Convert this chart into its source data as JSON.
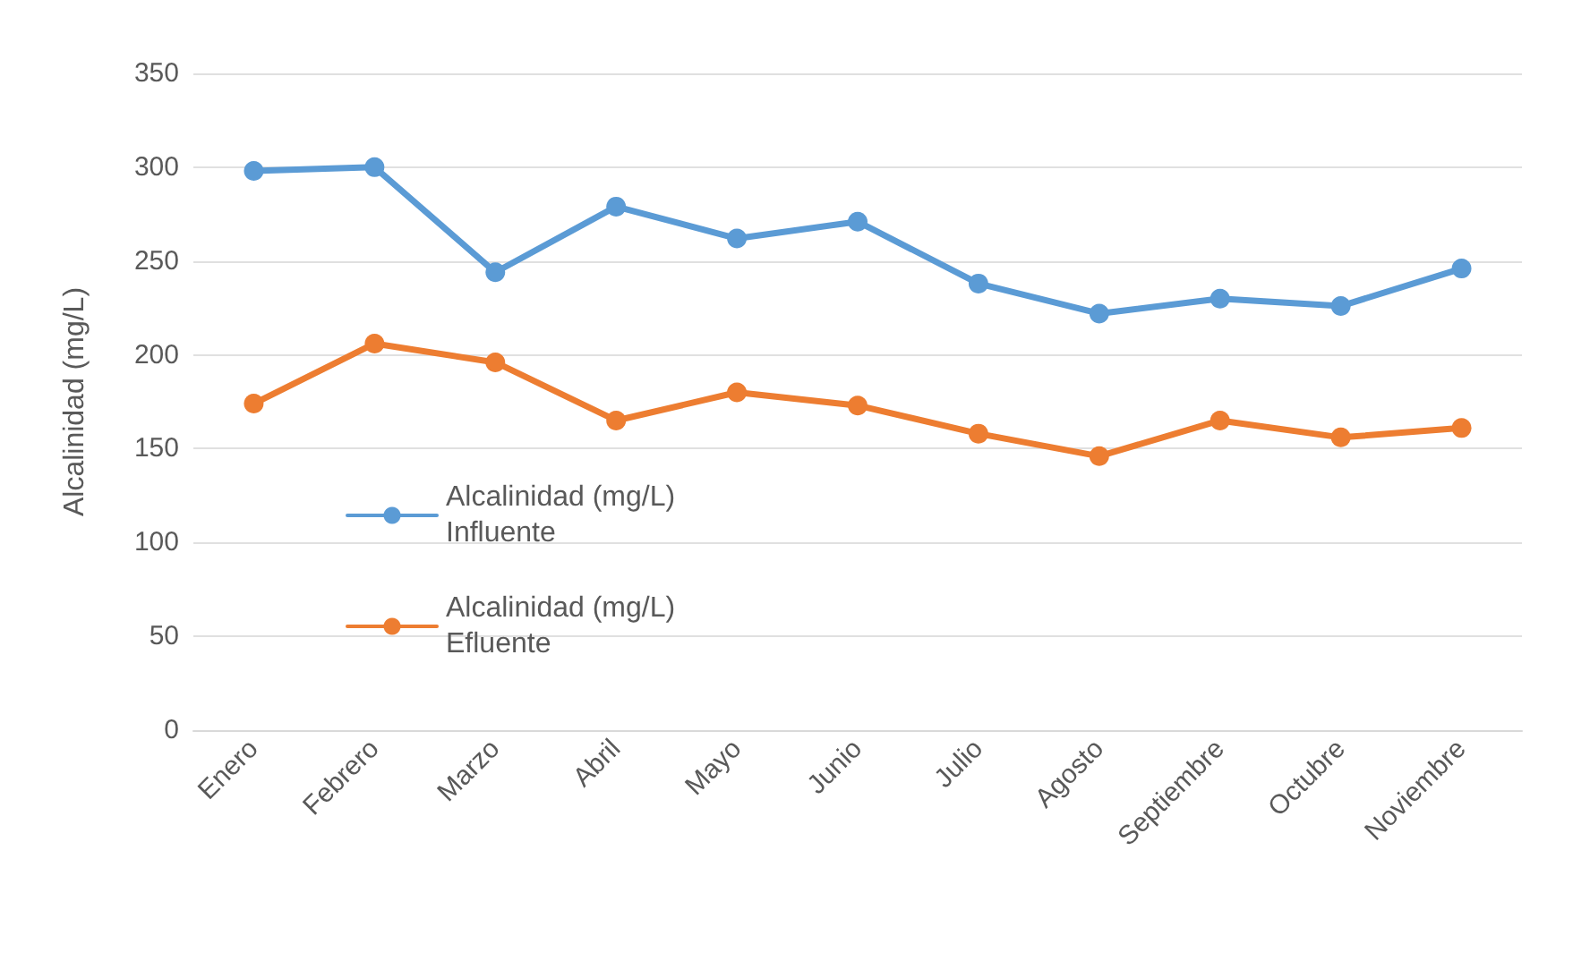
{
  "chart_data": {
    "type": "line",
    "ylabel": "Alcalinidad (mg/L)",
    "categories": [
      "Enero",
      "Febrero",
      "Marzo",
      "Abril",
      "Mayo",
      "Junio",
      "Julio",
      "Agosto",
      "Septiembre",
      "Octubre",
      "Noviembre"
    ],
    "series": [
      {
        "name": "Alcalinidad (mg/L)\nInfluente",
        "color": "#5b9bd5",
        "values": [
          298,
          300,
          244,
          279,
          262,
          271,
          238,
          222,
          230,
          226,
          246
        ]
      },
      {
        "name": "Alcalinidad (mg/L)\nEfluente",
        "color": "#ed7d31",
        "values": [
          174,
          206,
          196,
          165,
          180,
          173,
          158,
          146,
          165,
          156,
          161
        ]
      }
    ],
    "ylim": [
      0,
      350
    ],
    "yticks": [
      0,
      50,
      100,
      150,
      200,
      250,
      300,
      350
    ],
    "grid": "y",
    "legend": "left",
    "marker": "circle",
    "line_style": "solid"
  }
}
